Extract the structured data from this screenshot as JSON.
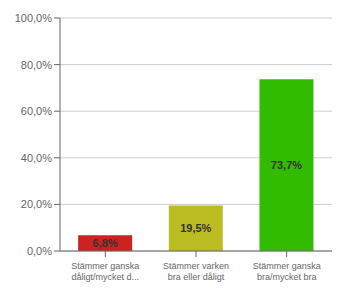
{
  "chart_data": {
    "type": "bar",
    "categories": [
      "Stämmer ganska\ndåligt/mycket d...",
      "Stämmer varken\nbra eller dåligt",
      "Stämmer ganska\nbra/mycket bra"
    ],
    "values": [
      6.8,
      19.5,
      73.7
    ],
    "value_labels": [
      "6,8%",
      "19,5%",
      "73,7%"
    ],
    "colors": [
      "#cc2222",
      "#bbbb22",
      "#33bb00"
    ],
    "ylim": [
      0,
      100
    ],
    "yticks": [
      {
        "value": 0,
        "label": "0,0%"
      },
      {
        "value": 20,
        "label": "20,0%"
      },
      {
        "value": 40,
        "label": "40,0%"
      },
      {
        "value": 60,
        "label": "60,0%"
      },
      {
        "value": 80,
        "label": "80,0%"
      },
      {
        "value": 100,
        "label": "100,0%"
      }
    ],
    "grid": true,
    "data_labels": true
  }
}
